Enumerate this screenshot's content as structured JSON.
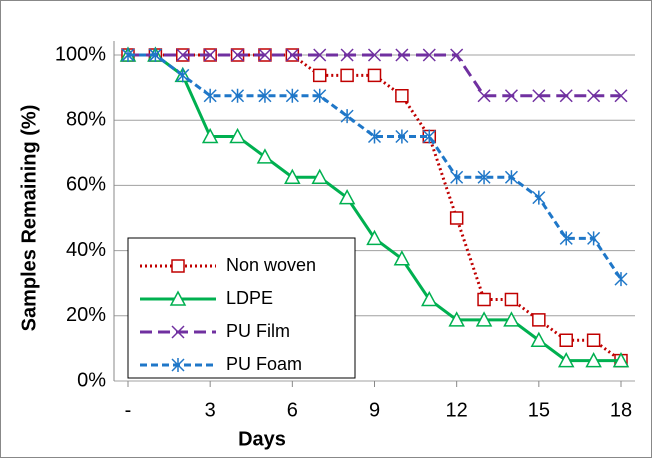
{
  "chart_data": {
    "type": "line",
    "x_label": "Days",
    "y_label": "Samples Remaining (%)",
    "x": [
      0,
      1,
      2,
      3,
      4,
      5,
      6,
      7,
      8,
      9,
      10,
      11,
      12,
      13,
      14,
      15,
      16,
      17,
      18
    ],
    "xlim": [
      0,
      18
    ],
    "xticks": [
      {
        "value": 0,
        "label": "-"
      },
      3,
      6,
      9,
      12,
      15,
      18
    ],
    "ylim": [
      0,
      100
    ],
    "yticks": [
      {
        "value": 0,
        "label": "0%"
      },
      {
        "value": 20,
        "label": "20%"
      },
      {
        "value": 40,
        "label": "40%"
      },
      {
        "value": 60,
        "label": "60%"
      },
      {
        "value": 80,
        "label": "80%"
      },
      {
        "value": 100,
        "label": "100%"
      }
    ],
    "grid": true,
    "legend": "lower left",
    "series": [
      {
        "name": "Non woven",
        "color": "#c00000",
        "marker": "square",
        "dash": "dot",
        "values": [
          100,
          100,
          100,
          100,
          100,
          100,
          100,
          93.75,
          93.75,
          93.75,
          87.5,
          75,
          50,
          25,
          25,
          18.75,
          12.5,
          12.5,
          6.25
        ]
      },
      {
        "name": "LDPE",
        "color": "#00b050",
        "marker": "triangle",
        "dash": "solid",
        "values": [
          100,
          100,
          93.75,
          75,
          75,
          68.75,
          62.5,
          62.5,
          56.25,
          43.75,
          37.5,
          25,
          18.75,
          18.75,
          18.75,
          12.5,
          6.25,
          6.25,
          6.25
        ]
      },
      {
        "name": "PU Film",
        "color": "#7030a0",
        "marker": "x",
        "dash": "longdash",
        "values": [
          100,
          100,
          100,
          100,
          100,
          100,
          100,
          100,
          100,
          100,
          100,
          100,
          100,
          87.5,
          87.5,
          87.5,
          87.5,
          87.5,
          87.5
        ]
      },
      {
        "name": "PU Foam",
        "color": "#1f77c8",
        "marker": "asterisk",
        "dash": "dash",
        "values": [
          100,
          100,
          93.75,
          87.5,
          87.5,
          87.5,
          87.5,
          87.5,
          81.25,
          75,
          75,
          75,
          62.5,
          62.5,
          62.5,
          56.25,
          43.75,
          43.75,
          31.25
        ]
      }
    ]
  }
}
